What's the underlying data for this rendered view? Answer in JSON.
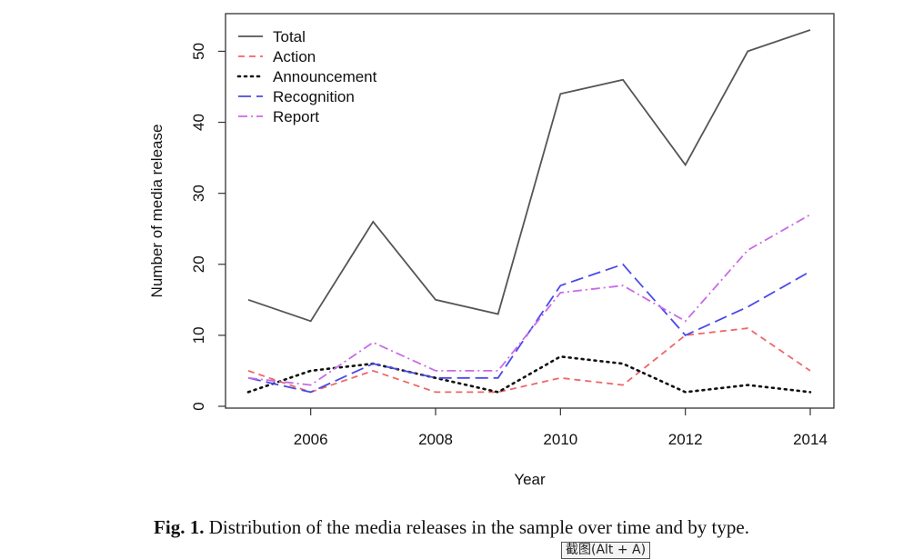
{
  "chart_data": {
    "type": "line",
    "x": [
      2005,
      2006,
      2007,
      2008,
      2009,
      2010,
      2011,
      2012,
      2013,
      2014
    ],
    "xlabel": "Year",
    "ylabel": "Number of media release",
    "xlim": [
      2005,
      2014
    ],
    "ylim": [
      0,
      53
    ],
    "xticks": [
      2006,
      2008,
      2010,
      2012,
      2014
    ],
    "yticks": [
      0,
      10,
      20,
      30,
      40,
      50
    ],
    "grid": false,
    "legend_position": "top-left",
    "series": [
      {
        "name": "Total",
        "color": "#555555",
        "dash": "solid",
        "values": [
          15,
          12,
          26,
          15,
          13,
          44,
          46,
          34,
          50,
          53
        ]
      },
      {
        "name": "Action",
        "color": "#f06565",
        "dash": "dashed",
        "values": [
          5,
          2,
          5,
          2,
          2,
          4,
          3,
          10,
          11,
          5
        ]
      },
      {
        "name": "Announcement",
        "color": "#111111",
        "dash": "dotted",
        "values": [
          2,
          5,
          6,
          4,
          2,
          7,
          6,
          2,
          3,
          2
        ]
      },
      {
        "name": "Recognition",
        "color": "#4a4ae8",
        "dash": "longdash",
        "values": [
          4,
          2,
          6,
          4,
          4,
          17,
          20,
          10,
          14,
          19
        ]
      },
      {
        "name": "Report",
        "color": "#c86be8",
        "dash": "dotdash",
        "values": [
          4,
          3,
          9,
          5,
          5,
          16,
          17,
          12,
          22,
          27
        ]
      }
    ]
  },
  "caption": {
    "label": "Fig. 1.",
    "text": " Distribution of the media releases in the sample over time and by type."
  },
  "tooltip_text": "截图(Alt + A)"
}
